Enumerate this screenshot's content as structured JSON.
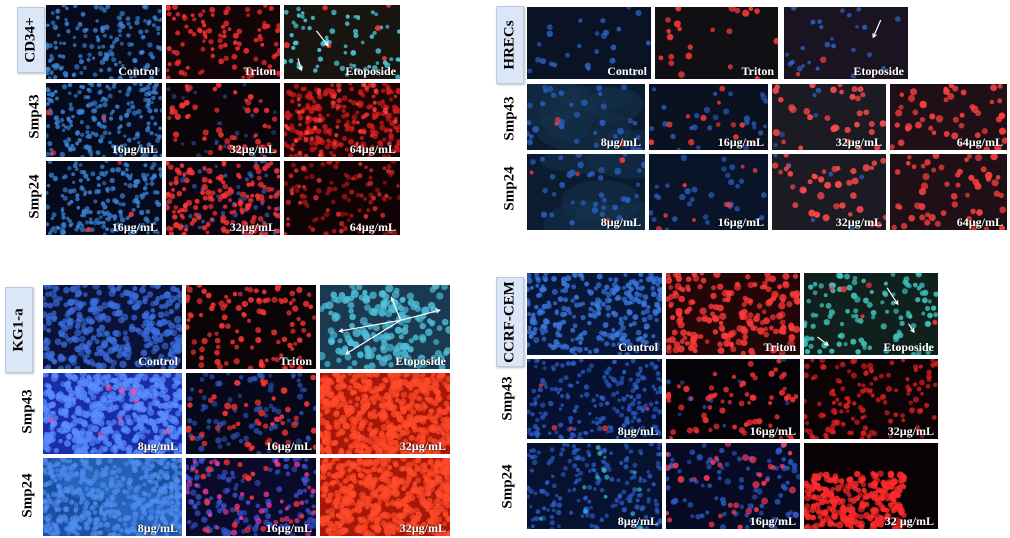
{
  "panels": [
    {
      "id": "cd34",
      "cell_line": "CD34+",
      "rows": [
        {
          "label": "",
          "tiles": [
            "Control",
            "Triton",
            "Etoposide"
          ]
        },
        {
          "label": "Smp43",
          "tiles": [
            "16µg/mL",
            "32µg/mL",
            "64µg/mL"
          ]
        },
        {
          "label": "Smp24",
          "tiles": [
            "16µg/mL",
            "32µg/mL",
            "64µg/mL"
          ]
        }
      ]
    },
    {
      "id": "hrecs",
      "cell_line": "HRECs",
      "rows": [
        {
          "label": "",
          "tiles": [
            "Control",
            "Triton",
            "Etoposide"
          ]
        },
        {
          "label": "Smp43",
          "tiles": [
            "8µg/mL",
            "16µg/mL",
            "32µg/mL",
            "64µg/mL"
          ]
        },
        {
          "label": "Smp24",
          "tiles": [
            "8µg/mL",
            "16µg/mL",
            "32µg/mL",
            "64µg/mL"
          ]
        }
      ]
    },
    {
      "id": "kg1a",
      "cell_line": "KG1-a",
      "rows": [
        {
          "label": "",
          "tiles": [
            "Control",
            "Triton",
            "Etoposide"
          ]
        },
        {
          "label": "Smp43",
          "tiles": [
            "8µg/mL",
            "16µg/mL",
            "32µg/mL"
          ]
        },
        {
          "label": "Smp24",
          "tiles": [
            "8µg/mL",
            "16µg/mL",
            "32µg/mL"
          ]
        }
      ]
    },
    {
      "id": "ccrf",
      "cell_line": "CCRF-CEM",
      "rows": [
        {
          "label": "",
          "tiles": [
            "Control",
            "Triton",
            "Etoposide"
          ]
        },
        {
          "label": "Smp43",
          "tiles": [
            "8µg/mL",
            "16µg/mL",
            "32µg/mL"
          ]
        },
        {
          "label": "Smp24",
          "tiles": [
            "8µg/mL",
            "16µg/mL",
            "32 µg/mL"
          ]
        }
      ]
    }
  ],
  "colors": {
    "background": "#ffffff",
    "label_box": "#dbe7f6",
    "nuclei_blue": "#2f6fd6",
    "nuclei_cyan": "#3fc3d6",
    "dead_red": "#ff2a2a"
  }
}
